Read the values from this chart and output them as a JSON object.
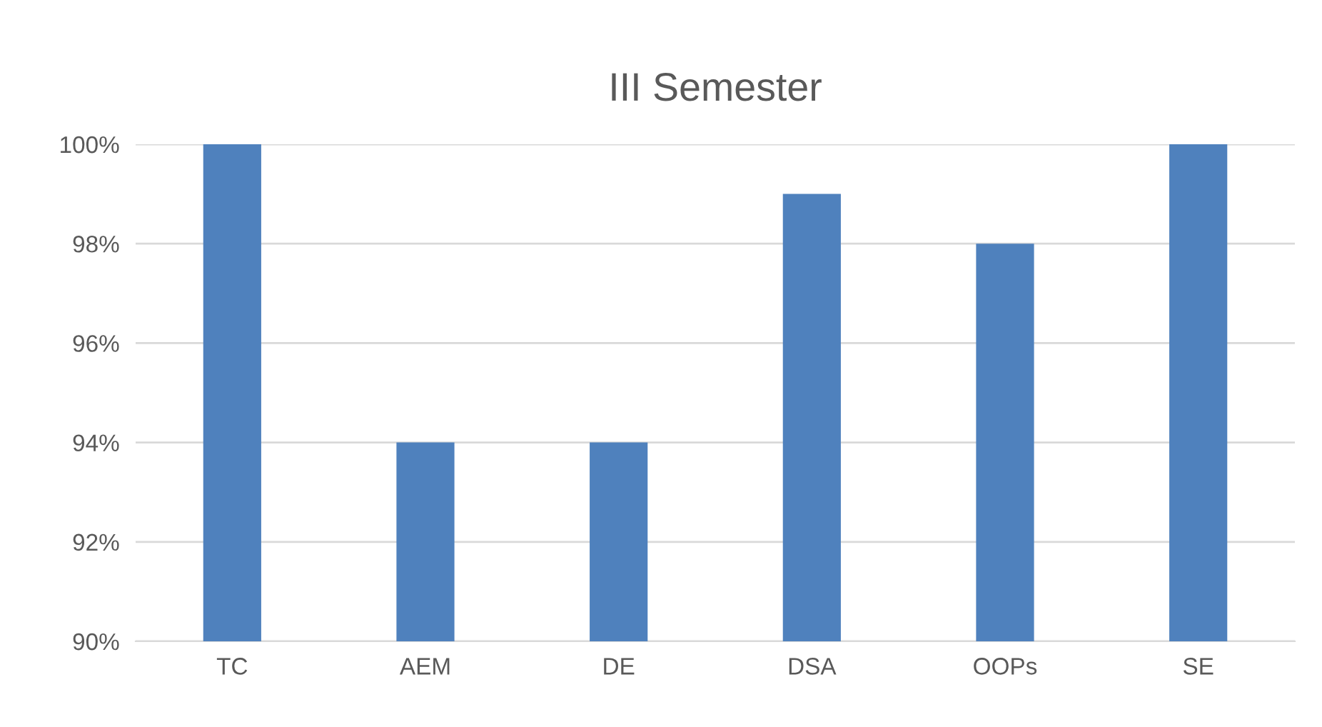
{
  "chart_data": {
    "type": "bar",
    "title": "III Semester",
    "categories": [
      "TC",
      "AEM",
      "DE",
      "DSA",
      "OOPs",
      "SE"
    ],
    "values": [
      100,
      94,
      94,
      99,
      98,
      100
    ],
    "color": "#4f81bd",
    "ylim": [
      90,
      100
    ],
    "yticks": [
      {
        "value": 90,
        "label": "90%"
      },
      {
        "value": 92,
        "label": "92%"
      },
      {
        "value": 94,
        "label": "94%"
      },
      {
        "value": 96,
        "label": "96%"
      },
      {
        "value": 98,
        "label": "98%"
      },
      {
        "value": 100,
        "label": "100%"
      }
    ],
    "grid": "y"
  }
}
